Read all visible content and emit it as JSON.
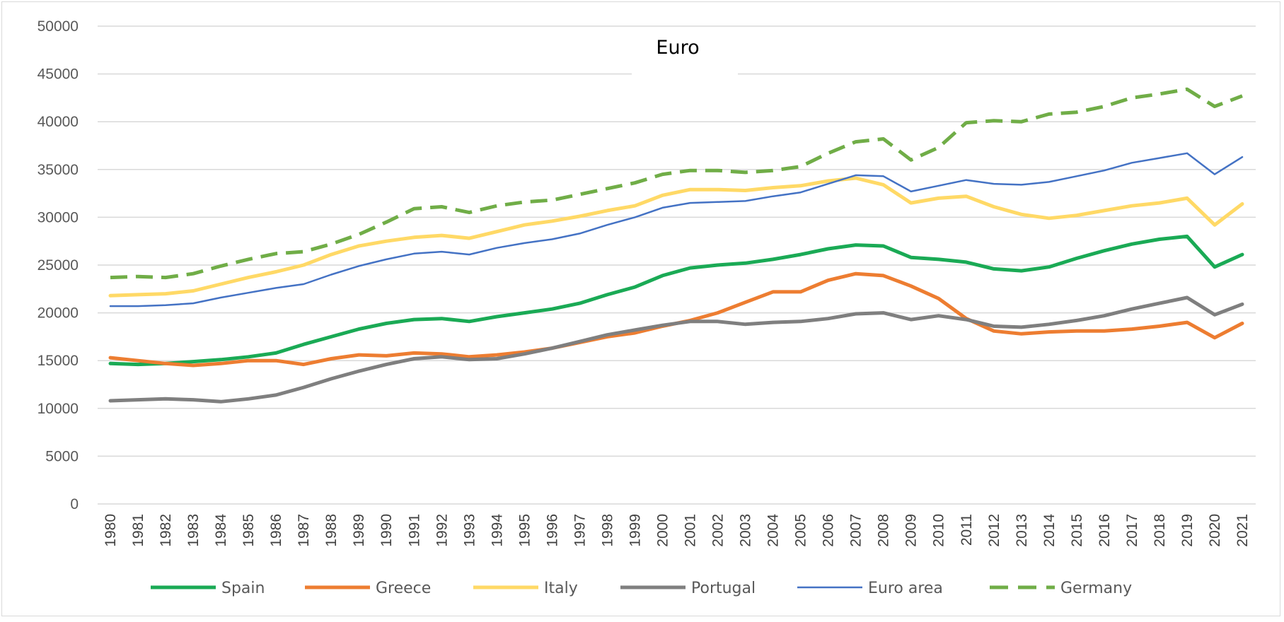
{
  "chart_data": {
    "type": "line",
    "title": "Euro",
    "xlabel": "",
    "ylabel": "",
    "ylim": [
      0,
      50000
    ],
    "yticks": [
      0,
      5000,
      10000,
      15000,
      20000,
      25000,
      30000,
      35000,
      40000,
      45000,
      50000
    ],
    "grid": true,
    "legend_position": "bottom",
    "x": [
      "1980",
      "1981",
      "1982",
      "1983",
      "1984",
      "1985",
      "1986",
      "1987",
      "1988",
      "1989",
      "1990",
      "1991",
      "1992",
      "1993",
      "1994",
      "1995",
      "1996",
      "1997",
      "1998",
      "1999",
      "2000",
      "2001",
      "2002",
      "2003",
      "2004",
      "2005",
      "2006",
      "2007",
      "2008",
      "2009",
      "2010",
      "2011",
      "2012",
      "2013",
      "2014",
      "2015",
      "2016",
      "2017",
      "2018",
      "2019",
      "2020",
      "2021"
    ],
    "series": [
      {
        "name": "Spain",
        "color": "#1aaa55",
        "style": "solid",
        "width": 5,
        "values": [
          14700,
          14600,
          14700,
          14900,
          15100,
          15400,
          15800,
          16700,
          17500,
          18300,
          18900,
          19300,
          19400,
          19100,
          19600,
          20000,
          20400,
          21000,
          21900,
          22700,
          23900,
          24700,
          25000,
          25200,
          25600,
          26100,
          26700,
          27100,
          27000,
          25800,
          25600,
          25300,
          24600,
          24400,
          24800,
          25700,
          26500,
          27200,
          27700,
          28000,
          24800,
          26100
        ]
      },
      {
        "name": "Greece",
        "color": "#ed7d31",
        "style": "solid",
        "width": 5,
        "values": [
          15300,
          15000,
          14700,
          14500,
          14700,
          15000,
          15000,
          14600,
          15200,
          15600,
          15500,
          15800,
          15700,
          15400,
          15600,
          15900,
          16300,
          16900,
          17500,
          17900,
          18600,
          19200,
          20000,
          21100,
          22200,
          22200,
          23400,
          24100,
          23900,
          22800,
          21500,
          19400,
          18100,
          17800,
          18000,
          18100,
          18100,
          18300,
          18600,
          19000,
          17400,
          18900
        ]
      },
      {
        "name": "Italy",
        "color": "#ffd966",
        "style": "solid",
        "width": 5,
        "values": [
          21800,
          21900,
          22000,
          22300,
          23000,
          23700,
          24300,
          25000,
          26100,
          27000,
          27500,
          27900,
          28100,
          27800,
          28500,
          29200,
          29600,
          30100,
          30700,
          31200,
          32300,
          32900,
          32900,
          32800,
          33100,
          33300,
          33800,
          34100,
          33400,
          31500,
          32000,
          32200,
          31100,
          30300,
          29900,
          30200,
          30700,
          31200,
          31500,
          32000,
          29200,
          31400
        ]
      },
      {
        "name": "Portugal",
        "color": "#7f7f7f",
        "style": "solid",
        "width": 5,
        "values": [
          10800,
          10900,
          11000,
          10900,
          10700,
          11000,
          11400,
          12200,
          13100,
          13900,
          14600,
          15200,
          15400,
          15100,
          15200,
          15700,
          16300,
          17000,
          17700,
          18200,
          18700,
          19100,
          19100,
          18800,
          19000,
          19100,
          19400,
          19900,
          20000,
          19300,
          19700,
          19300,
          18600,
          18500,
          18800,
          19200,
          19700,
          20400,
          21000,
          21600,
          19800,
          20900
        ]
      },
      {
        "name": "Euro area",
        "color": "#4472c4",
        "style": "solid",
        "width": 2.5,
        "values": [
          20700,
          20700,
          20800,
          21000,
          21600,
          22100,
          22600,
          23000,
          24000,
          24900,
          25600,
          26200,
          26400,
          26100,
          26800,
          27300,
          27700,
          28300,
          29200,
          30000,
          31000,
          31500,
          31600,
          31700,
          32200,
          32600,
          33500,
          34400,
          34300,
          32700,
          33300,
          33900,
          33500,
          33400,
          33700,
          34300,
          34900,
          35700,
          36200,
          36700,
          34500,
          36300
        ]
      },
      {
        "name": "Germany",
        "color": "#70ad47",
        "style": "dashed",
        "width": 5,
        "values": [
          23700,
          23800,
          23700,
          24100,
          24900,
          25600,
          26200,
          26400,
          27200,
          28200,
          29500,
          30900,
          31100,
          30500,
          31200,
          31600,
          31800,
          32400,
          33000,
          33600,
          34500,
          34900,
          34900,
          34700,
          34900,
          35300,
          36700,
          37900,
          38200,
          36000,
          37300,
          39900,
          40100,
          40000,
          40800,
          41000,
          41600,
          42500,
          42900,
          43400,
          41600,
          42700
        ]
      }
    ]
  }
}
